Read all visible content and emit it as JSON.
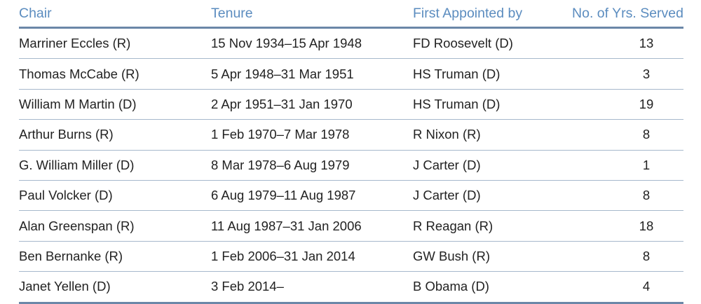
{
  "header": {
    "chair": "Chair",
    "tenure": "Tenure",
    "appointed_by": "First Appointed by",
    "years": "No. of Yrs. Served"
  },
  "rows": [
    {
      "chair": "Marriner Eccles (R)",
      "tenure": "15 Nov 1934–15 Apr 1948",
      "appointed_by": "FD Roosevelt (D)",
      "years": "13"
    },
    {
      "chair": "Thomas McCabe (R)",
      "tenure": "5 Apr 1948–31 Mar 1951",
      "appointed_by": "HS Truman (D)",
      "years": "3"
    },
    {
      "chair": "William M Martin (D)",
      "tenure": "2 Apr 1951–31 Jan 1970",
      "appointed_by": "HS Truman (D)",
      "years": "19"
    },
    {
      "chair": "Arthur Burns (R)",
      "tenure": "1 Feb 1970–7 Mar 1978",
      "appointed_by": "R Nixon (R)",
      "years": "8"
    },
    {
      "chair": "G. William Miller (D)",
      "tenure": "8 Mar 1978–6 Aug 1979",
      "appointed_by": "J Carter (D)",
      "years": "1"
    },
    {
      "chair": "Paul Volcker (D)",
      "tenure": "6 Aug 1979–11 Aug 1987",
      "appointed_by": "J Carter (D)",
      "years": "8"
    },
    {
      "chair": "Alan Greenspan (R)",
      "tenure": "11 Aug 1987–31 Jan 2006",
      "appointed_by": "R Reagan (R)",
      "years": "18"
    },
    {
      "chair": "Ben Bernanke (R)",
      "tenure": "1 Feb 2006–31 Jan 2014",
      "appointed_by": "GW Bush (R)",
      "years": "8"
    },
    {
      "chair": "Janet Yellen (D)",
      "tenure": "3 Feb 2014–",
      "appointed_by": "B Obama (D)",
      "years": "4"
    }
  ],
  "colors": {
    "header_text": "#5b8cbf",
    "rule": "#6b87a8",
    "row_divider": "#a6b8cc",
    "body_text": "#222222"
  }
}
